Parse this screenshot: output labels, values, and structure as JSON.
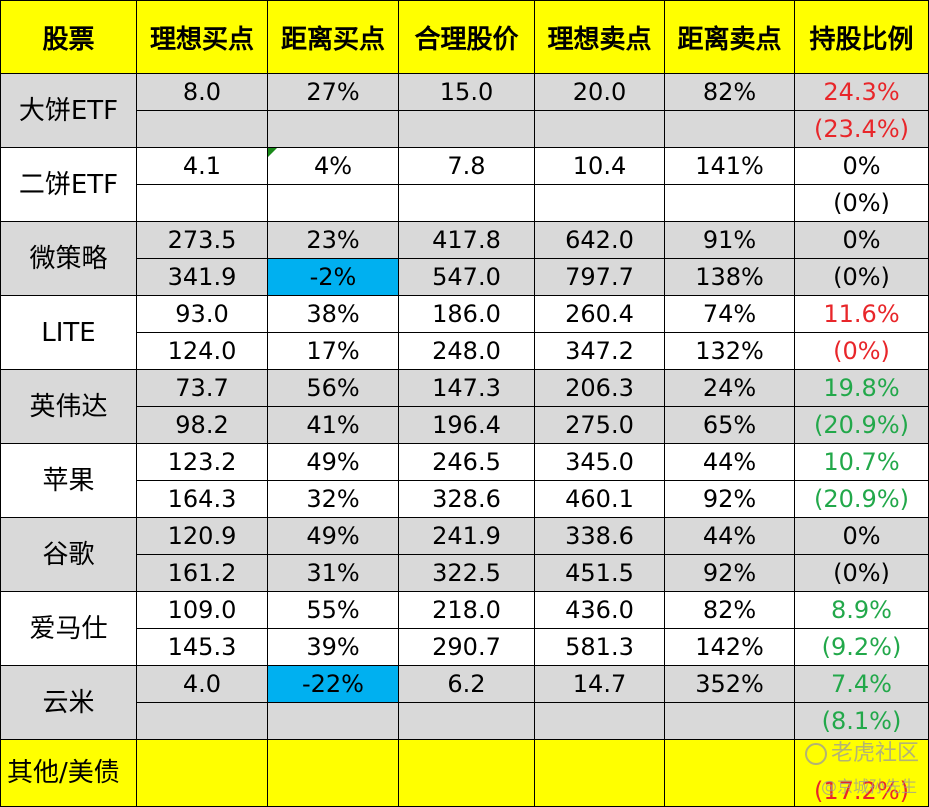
{
  "headers": [
    "股票",
    "理想买点",
    "距离买点",
    "合理股价",
    "理想卖点",
    "距离卖点",
    "持股比例"
  ],
  "colors": {
    "red": "#e8262a",
    "green": "#22a84a",
    "black": "#000000",
    "header_bg": "#ffff00",
    "gray_bg": "#d9d9d9",
    "blue_cell": "#00b0f0"
  },
  "stocks": [
    {
      "name": "大饼ETF",
      "bg": "gray",
      "rows": [
        {
          "buy": "8.0",
          "dist_buy": "27%",
          "fair": "15.0",
          "sell": "20.0",
          "dist_sell": "82%",
          "hold": "24.3%",
          "hold_color": "red"
        },
        {
          "buy": "",
          "dist_buy": "",
          "fair": "",
          "sell": "",
          "dist_sell": "",
          "hold": "(23.4%)",
          "hold_color": "red"
        }
      ]
    },
    {
      "name": "二饼ETF",
      "bg": "white",
      "rows": [
        {
          "buy": "4.1",
          "dist_buy": "4%",
          "fair": "7.8",
          "sell": "10.4",
          "dist_sell": "141%",
          "hold": "0%",
          "hold_color": "black"
        },
        {
          "buy": "",
          "dist_buy": "",
          "fair": "",
          "sell": "",
          "dist_sell": "",
          "hold": "(0%)",
          "hold_color": "black"
        }
      ]
    },
    {
      "name": "微策略",
      "bg": "gray",
      "rows": [
        {
          "buy": "273.5",
          "dist_buy": "23%",
          "fair": "417.8",
          "sell": "642.0",
          "dist_sell": "91%",
          "hold": "0%",
          "hold_color": "black"
        },
        {
          "buy": "341.9",
          "dist_buy": "-2%",
          "fair": "547.0",
          "sell": "797.7",
          "dist_sell": "138%",
          "hold": "(0%)",
          "hold_color": "black",
          "highlight": true
        }
      ]
    },
    {
      "name": "LITE",
      "bg": "white",
      "rows": [
        {
          "buy": "93.0",
          "dist_buy": "38%",
          "fair": "186.0",
          "sell": "260.4",
          "dist_sell": "74%",
          "hold": "11.6%",
          "hold_color": "red"
        },
        {
          "buy": "124.0",
          "dist_buy": "17%",
          "fair": "248.0",
          "sell": "347.2",
          "dist_sell": "132%",
          "hold": "(0%)",
          "hold_color": "red"
        }
      ]
    },
    {
      "name": "英伟达",
      "bg": "gray",
      "rows": [
        {
          "buy": "73.7",
          "dist_buy": "56%",
          "fair": "147.3",
          "sell": "206.3",
          "dist_sell": "24%",
          "hold": "19.8%",
          "hold_color": "green"
        },
        {
          "buy": "98.2",
          "dist_buy": "41%",
          "fair": "196.4",
          "sell": "275.0",
          "dist_sell": "65%",
          "hold": "(20.9%)",
          "hold_color": "green"
        }
      ]
    },
    {
      "name": "苹果",
      "bg": "white",
      "rows": [
        {
          "buy": "123.2",
          "dist_buy": "49%",
          "fair": "246.5",
          "sell": "345.0",
          "dist_sell": "44%",
          "hold": "10.7%",
          "hold_color": "green"
        },
        {
          "buy": "164.3",
          "dist_buy": "32%",
          "fair": "328.6",
          "sell": "460.1",
          "dist_sell": "92%",
          "hold": "(20.9%)",
          "hold_color": "green"
        }
      ]
    },
    {
      "name": "谷歌",
      "bg": "gray",
      "rows": [
        {
          "buy": "120.9",
          "dist_buy": "49%",
          "fair": "241.9",
          "sell": "338.6",
          "dist_sell": "44%",
          "hold": "0%",
          "hold_color": "black"
        },
        {
          "buy": "161.2",
          "dist_buy": "31%",
          "fair": "322.5",
          "sell": "451.5",
          "dist_sell": "92%",
          "hold": "(0%)",
          "hold_color": "black"
        }
      ]
    },
    {
      "name": "爱马仕",
      "bg": "white",
      "rows": [
        {
          "buy": "109.0",
          "dist_buy": "55%",
          "fair": "218.0",
          "sell": "436.0",
          "dist_sell": "82%",
          "hold": "8.9%",
          "hold_color": "green"
        },
        {
          "buy": "145.3",
          "dist_buy": "39%",
          "fair": "290.7",
          "sell": "581.3",
          "dist_sell": "142%",
          "hold": "(9.2%)",
          "hold_color": "green"
        }
      ]
    },
    {
      "name": "云米",
      "bg": "gray",
      "rows": [
        {
          "buy": "4.0",
          "dist_buy": "-22%",
          "fair": "6.2",
          "sell": "14.7",
          "dist_sell": "352%",
          "hold": "7.4%",
          "hold_color": "green",
          "highlight": true
        },
        {
          "buy": "",
          "dist_buy": "",
          "fair": "",
          "sell": "",
          "dist_sell": "",
          "hold": "(8.1%)",
          "hold_color": "green"
        }
      ]
    }
  ],
  "other": {
    "name": "其他/美债",
    "hold": "(17.2%)",
    "hold_color": "red"
  },
  "watermark": {
    "site": "老虎社区",
    "author": "@京城孙先生"
  }
}
